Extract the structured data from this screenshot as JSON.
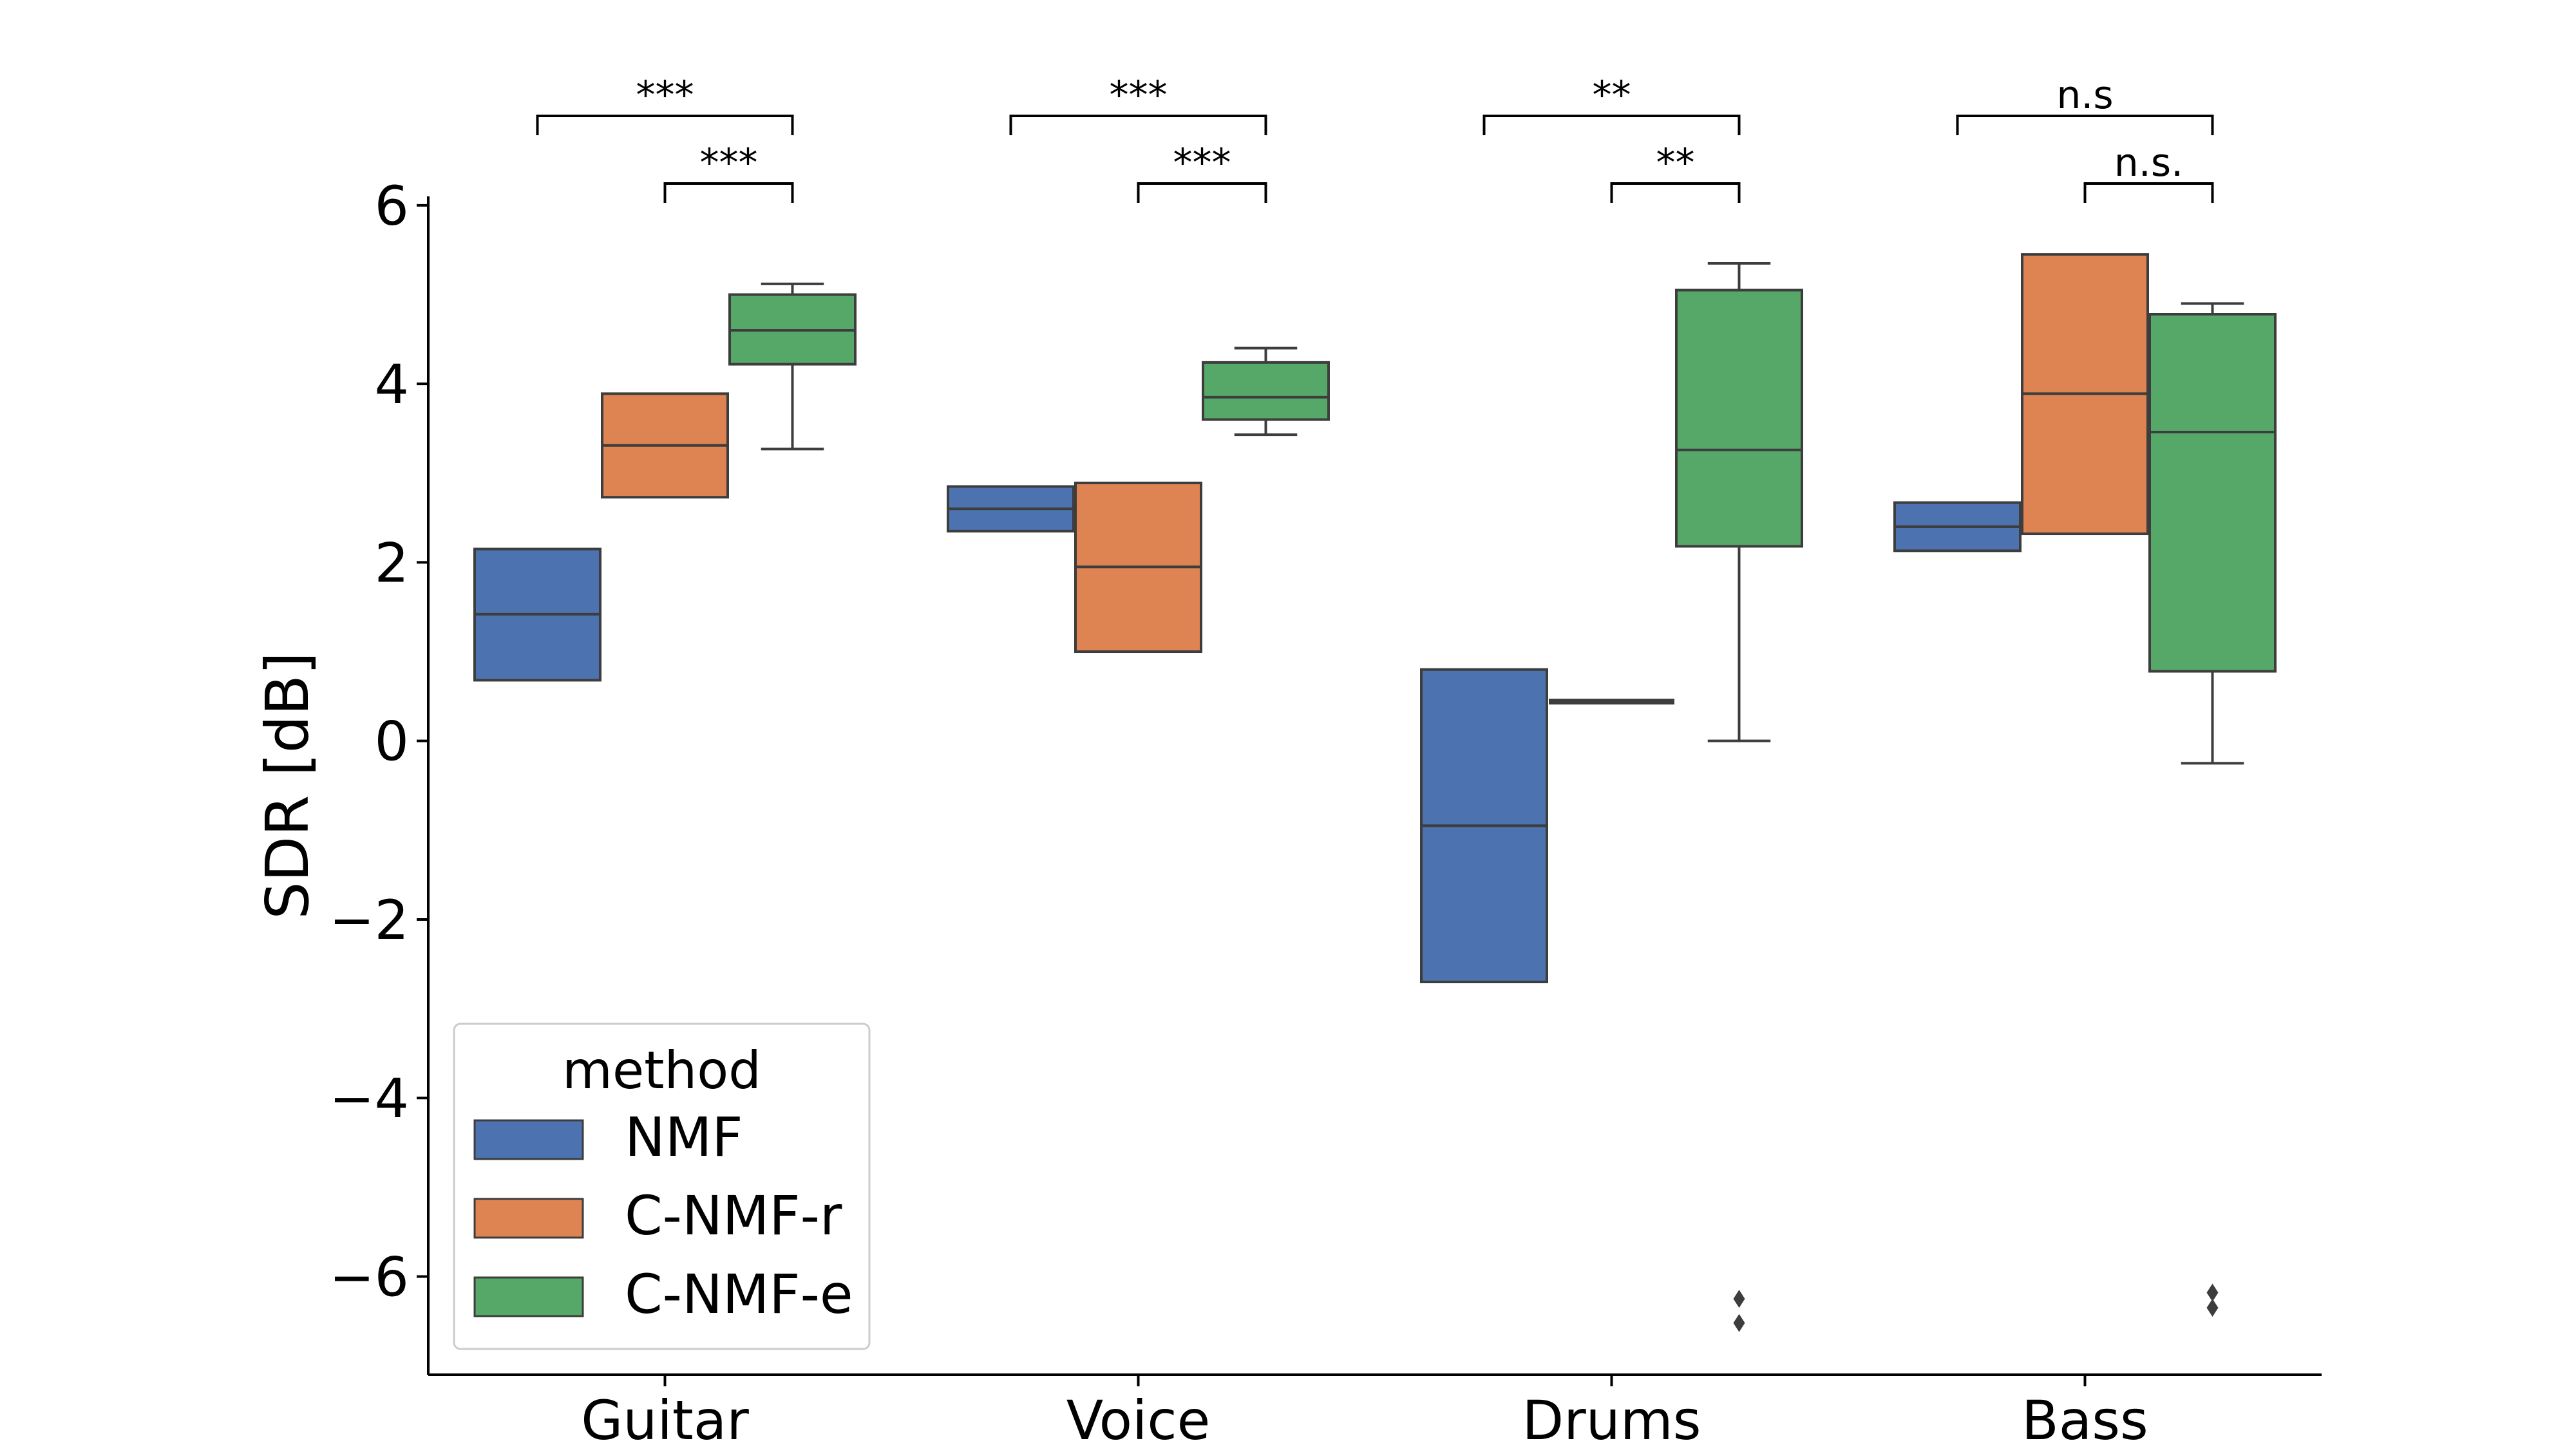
{
  "chart_data": {
    "type": "box",
    "ylabel": "SDR [dB]",
    "ylim": [
      -7.1,
      6.1
    ],
    "yticks": [
      6,
      4,
      2,
      0,
      -2,
      -4,
      -6
    ],
    "ytick_labels": [
      "6",
      "4",
      "2",
      "0",
      "−2",
      "−4",
      "−6"
    ],
    "categories": [
      "Guitar",
      "Voice",
      "Drums",
      "Bass"
    ],
    "legend": {
      "title": "method",
      "position": "lower-left",
      "entries": [
        "NMF",
        "C-NMF-r",
        "C-NMF-e"
      ]
    },
    "series": [
      {
        "name": "NMF",
        "color": "#4c72b0",
        "boxes": [
          {
            "whisker_low": 0.68,
            "q1": 0.68,
            "median": 1.42,
            "q3": 2.15,
            "whisker_high": 2.15,
            "outliers": []
          },
          {
            "whisker_low": 2.35,
            "q1": 2.35,
            "median": 2.6,
            "q3": 2.85,
            "whisker_high": 2.85,
            "outliers": []
          },
          {
            "whisker_low": -2.7,
            "q1": -2.7,
            "median": -0.95,
            "q3": 0.8,
            "whisker_high": 0.8,
            "outliers": []
          },
          {
            "whisker_low": 2.13,
            "q1": 2.13,
            "median": 2.4,
            "q3": 2.67,
            "whisker_high": 2.67,
            "outliers": []
          }
        ]
      },
      {
        "name": "C-NMF-r",
        "color": "#dd8452",
        "boxes": [
          {
            "whisker_low": 2.73,
            "q1": 2.73,
            "median": 3.31,
            "q3": 3.89,
            "whisker_high": 3.89,
            "outliers": []
          },
          {
            "whisker_low": 1.0,
            "q1": 1.0,
            "median": 1.95,
            "q3": 2.89,
            "whisker_high": 2.89,
            "outliers": []
          },
          {
            "whisker_low": 0.44,
            "q1": 0.44,
            "median": 0.44,
            "q3": 0.44,
            "whisker_high": 0.44,
            "outliers": []
          },
          {
            "whisker_low": 2.32,
            "q1": 2.32,
            "median": 3.89,
            "q3": 5.45,
            "whisker_high": 5.45,
            "outliers": []
          }
        ]
      },
      {
        "name": "C-NMF-e",
        "color": "#55a868",
        "boxes": [
          {
            "whisker_low": 3.27,
            "q1": 4.22,
            "median": 4.6,
            "q3": 5.0,
            "whisker_high": 5.12,
            "outliers": []
          },
          {
            "whisker_low": 3.43,
            "q1": 3.6,
            "median": 3.85,
            "q3": 4.24,
            "whisker_high": 4.4,
            "outliers": []
          },
          {
            "whisker_low": 0.0,
            "q1": 2.18,
            "median": 3.26,
            "q3": 5.05,
            "whisker_high": 5.35,
            "outliers": [
              -6.25,
              -6.52
            ]
          },
          {
            "whisker_low": -0.25,
            "q1": 0.78,
            "median": 3.46,
            "q3": 4.78,
            "whisker_high": 4.9,
            "outliers": [
              -6.18,
              -6.35
            ]
          }
        ]
      }
    ],
    "significance": [
      {
        "category": "Guitar",
        "from": "NMF",
        "to": "C-NMF-e",
        "label": "***",
        "level": "upper"
      },
      {
        "category": "Guitar",
        "from": "C-NMF-r",
        "to": "C-NMF-e",
        "label": "***",
        "level": "lower"
      },
      {
        "category": "Voice",
        "from": "NMF",
        "to": "C-NMF-e",
        "label": "***",
        "level": "upper"
      },
      {
        "category": "Voice",
        "from": "C-NMF-r",
        "to": "C-NMF-e",
        "label": "***",
        "level": "lower"
      },
      {
        "category": "Drums",
        "from": "NMF",
        "to": "C-NMF-e",
        "label": "**",
        "level": "upper"
      },
      {
        "category": "Drums",
        "from": "C-NMF-r",
        "to": "C-NMF-e",
        "label": "**",
        "level": "lower"
      },
      {
        "category": "Bass",
        "from": "NMF",
        "to": "C-NMF-e",
        "label": "n.s",
        "level": "upper"
      },
      {
        "category": "Bass",
        "from": "C-NMF-r",
        "to": "C-NMF-e",
        "label": "n.s.",
        "level": "lower"
      }
    ],
    "grid": false
  }
}
